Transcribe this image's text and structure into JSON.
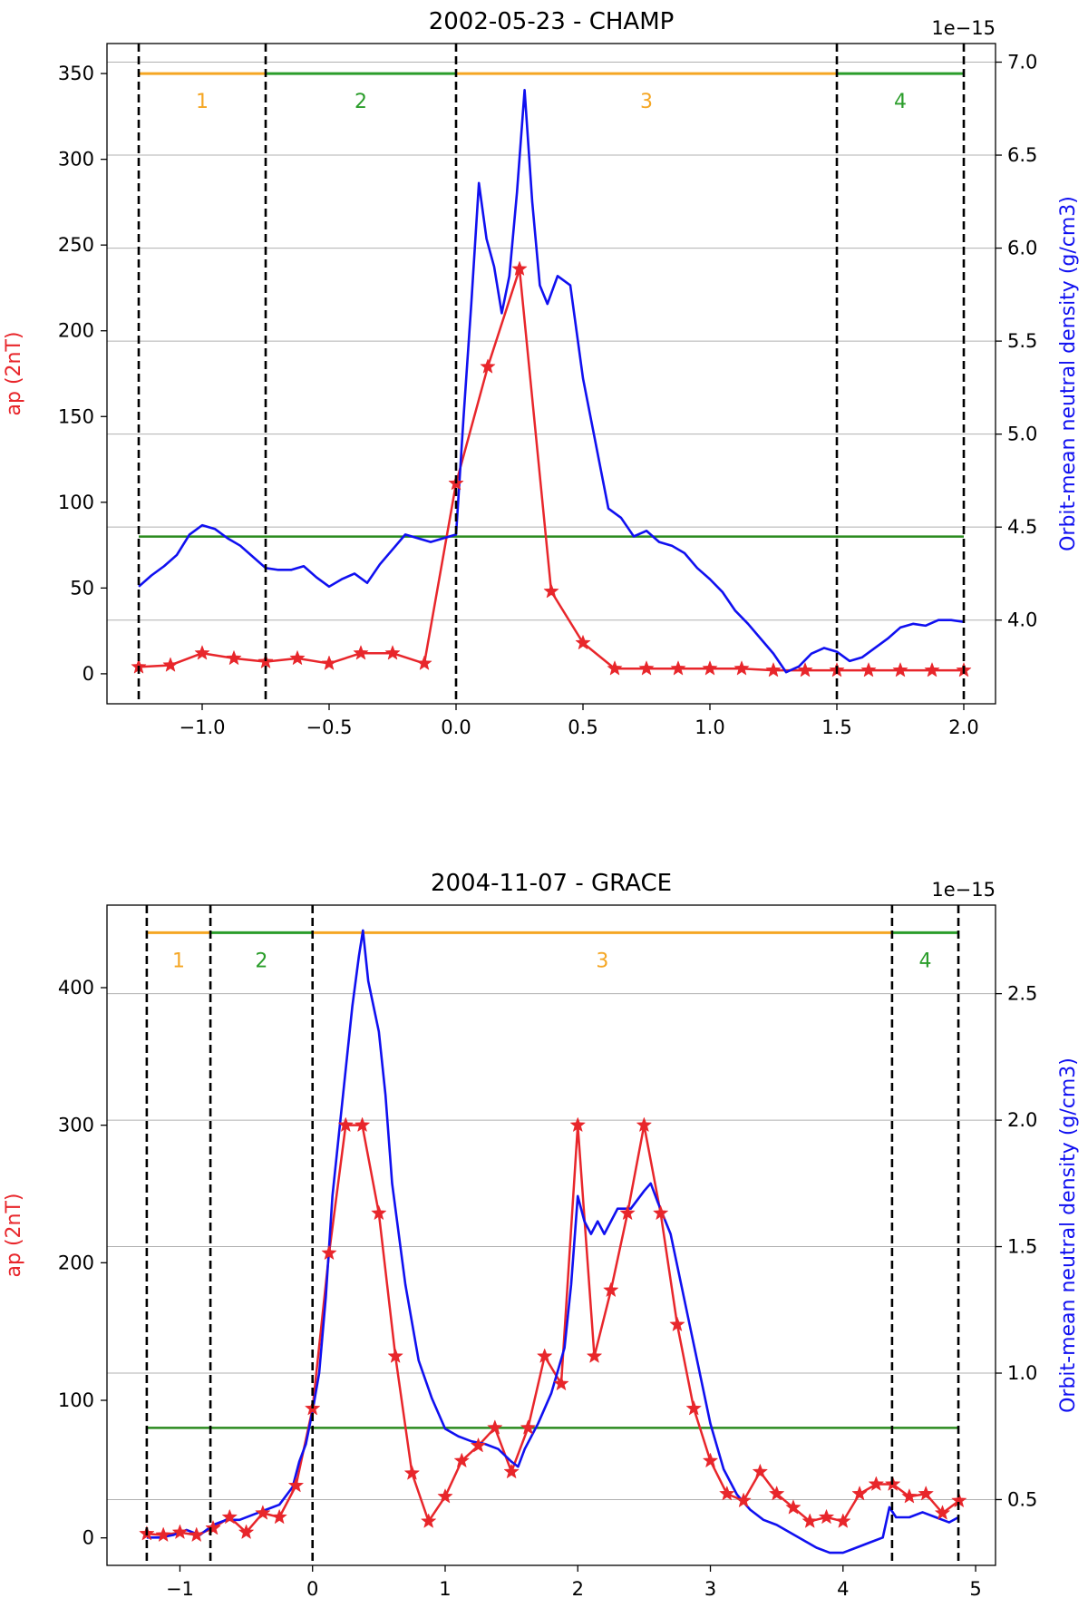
{
  "chart_data": [
    {
      "type": "line",
      "title": "2002-05-23 - CHAMP",
      "ylabel_left": "ap (2nT)",
      "ylabel_right": "Orbit-mean neutral density (g/cm3)",
      "right_offset_text": "1e−15",
      "xlim": [
        -1.375,
        2.125
      ],
      "ylim_left": [
        -17.5,
        367.5
      ],
      "ylim_right": [
        3.55,
        7.1
      ],
      "x_ticks": [
        -1.0,
        -0.5,
        0.0,
        0.5,
        1.0,
        1.5,
        2.0
      ],
      "x_tick_labels": [
        "−1.0",
        "−0.5",
        "0.0",
        "0.5",
        "1.0",
        "1.5",
        "2.0"
      ],
      "y_left_ticks": [
        0,
        50,
        100,
        150,
        200,
        250,
        300,
        350
      ],
      "y_left_tick_labels": [
        "0",
        "50",
        "100",
        "150",
        "200",
        "250",
        "300",
        "350"
      ],
      "y_right_ticks": [
        4.0,
        4.5,
        5.0,
        5.5,
        6.0,
        6.5,
        7.0
      ],
      "y_right_tick_labels": [
        "4.0",
        "4.5",
        "5.0",
        "5.5",
        "6.0",
        "6.5",
        "7.0"
      ],
      "grid": "horizontal, right axis",
      "threshold_ap": 80,
      "phase_bar_ap": 350,
      "phase_boundaries": [
        -1.25,
        -0.75,
        0.0,
        1.5,
        2.0
      ],
      "phases": [
        {
          "label": "1",
          "start": -1.25,
          "end": -0.75,
          "color": "#f5a623"
        },
        {
          "label": "2",
          "start": -0.75,
          "end": 0.0,
          "color": "#2a9d2a"
        },
        {
          "label": "3",
          "start": 0.0,
          "end": 1.5,
          "color": "#f5a623"
        },
        {
          "label": "4",
          "start": 1.5,
          "end": 2.0,
          "color": "#2a9d2a"
        }
      ],
      "series": [
        {
          "axis": "left",
          "color": "#e8262b",
          "marker": "star",
          "x": [
            -1.25,
            -1.125,
            -1.0,
            -0.875,
            -0.75,
            -0.625,
            -0.5,
            -0.375,
            -0.25,
            -0.125,
            0.0,
            0.125,
            0.25,
            0.375,
            0.5,
            0.625,
            0.75,
            0.875,
            1.0,
            1.125,
            1.25,
            1.375,
            1.5,
            1.625,
            1.75,
            1.875,
            2.0
          ],
          "y": [
            4,
            5,
            12,
            9,
            7,
            9,
            6,
            12,
            12,
            6,
            111,
            179,
            236,
            48,
            18,
            3,
            3,
            3,
            3,
            3,
            2,
            2,
            2,
            2,
            2,
            2,
            2
          ]
        },
        {
          "axis": "right",
          "color": "#1010f0",
          "x": [
            -1.25,
            -1.2,
            -1.15,
            -1.1,
            -1.05,
            -1.0,
            -0.95,
            -0.9,
            -0.85,
            -0.8,
            -0.75,
            -0.7,
            -0.65,
            -0.6,
            -0.55,
            -0.5,
            -0.45,
            -0.4,
            -0.35,
            -0.3,
            -0.25,
            -0.2,
            -0.15,
            -0.1,
            -0.05,
            0.0,
            0.03,
            0.06,
            0.09,
            0.12,
            0.15,
            0.18,
            0.21,
            0.24,
            0.27,
            0.3,
            0.33,
            0.36,
            0.4,
            0.45,
            0.5,
            0.55,
            0.6,
            0.65,
            0.7,
            0.75,
            0.8,
            0.85,
            0.9,
            0.95,
            1.0,
            1.05,
            1.1,
            1.15,
            1.2,
            1.25,
            1.3,
            1.35,
            1.4,
            1.45,
            1.5,
            1.55,
            1.6,
            1.65,
            1.7,
            1.75,
            1.8,
            1.85,
            1.9,
            1.95,
            2.0
          ],
          "y": [
            4.18,
            4.24,
            4.29,
            4.35,
            4.46,
            4.51,
            4.49,
            4.44,
            4.4,
            4.34,
            4.28,
            4.27,
            4.27,
            4.29,
            4.23,
            4.18,
            4.22,
            4.25,
            4.2,
            4.3,
            4.38,
            4.46,
            4.44,
            4.42,
            4.44,
            4.46,
            5.1,
            5.7,
            6.35,
            6.05,
            5.9,
            5.65,
            5.85,
            6.3,
            6.85,
            6.25,
            5.8,
            5.7,
            5.85,
            5.8,
            5.3,
            4.95,
            4.6,
            4.55,
            4.45,
            4.48,
            4.42,
            4.4,
            4.36,
            4.28,
            4.22,
            4.15,
            4.05,
            3.98,
            3.9,
            3.82,
            3.72,
            3.75,
            3.82,
            3.85,
            3.83,
            3.78,
            3.8,
            3.85,
            3.9,
            3.96,
            3.98,
            3.97,
            4.0,
            4.0,
            3.99
          ]
        }
      ]
    },
    {
      "type": "line",
      "title": "2004-11-07 - GRACE",
      "ylabel_left": "ap (2nT)",
      "ylabel_right": "Orbit-mean neutral density (g/cm3)",
      "right_offset_text": "1e−15",
      "xlim": [
        -1.55,
        5.15
      ],
      "ylim_left": [
        -20,
        460
      ],
      "ylim_right": [
        0.24,
        2.85
      ],
      "x_ticks": [
        -1,
        0,
        1,
        2,
        3,
        4,
        5
      ],
      "x_tick_labels": [
        "−1",
        "0",
        "1",
        "2",
        "3",
        "4",
        "5"
      ],
      "y_left_ticks": [
        0,
        100,
        200,
        300,
        400
      ],
      "y_left_tick_labels": [
        "0",
        "100",
        "200",
        "300",
        "400"
      ],
      "y_right_ticks": [
        0.5,
        1.0,
        1.5,
        2.0,
        2.5
      ],
      "y_right_tick_labels": [
        "0.5",
        "1.0",
        "1.5",
        "2.0",
        "2.5"
      ],
      "grid": "horizontal, right axis",
      "threshold_ap": 80,
      "phase_bar_ap": 440,
      "phase_boundaries": [
        -1.25,
        -0.77,
        0.0,
        4.37,
        4.87
      ],
      "phases": [
        {
          "label": "1",
          "start": -1.25,
          "end": -0.77,
          "color": "#f5a623"
        },
        {
          "label": "2",
          "start": -0.77,
          "end": 0.0,
          "color": "#2a9d2a"
        },
        {
          "label": "3",
          "start": 0.0,
          "end": 4.37,
          "color": "#f5a623"
        },
        {
          "label": "4",
          "start": 4.37,
          "end": 4.87,
          "color": "#2a9d2a"
        }
      ],
      "series": [
        {
          "axis": "left",
          "color": "#e8262b",
          "marker": "star",
          "x": [
            -1.25,
            -1.125,
            -1.0,
            -0.875,
            -0.75,
            -0.625,
            -0.5,
            -0.375,
            -0.25,
            -0.125,
            0.0,
            0.125,
            0.25,
            0.375,
            0.5,
            0.625,
            0.75,
            0.875,
            1.0,
            1.125,
            1.25,
            1.375,
            1.5,
            1.625,
            1.75,
            1.875,
            2.0,
            2.125,
            2.25,
            2.375,
            2.5,
            2.625,
            2.75,
            2.875,
            3.0,
            3.125,
            3.25,
            3.375,
            3.5,
            3.625,
            3.75,
            3.875,
            4.0,
            4.125,
            4.25,
            4.375,
            4.5,
            4.625,
            4.75,
            4.875
          ],
          "y": [
            3,
            2,
            4,
            2,
            7,
            15,
            4,
            18,
            15,
            38,
            94,
            207,
            300,
            300,
            236,
            132,
            47,
            12,
            30,
            56,
            67,
            80,
            48,
            80,
            132,
            112,
            300,
            132,
            180,
            236,
            300,
            236,
            155,
            94,
            56,
            32,
            27,
            48,
            32,
            22,
            12,
            15,
            12,
            32,
            39,
            39,
            30,
            32,
            18,
            27
          ]
        },
        {
          "axis": "right",
          "color": "#1010f0",
          "x": [
            -1.25,
            -1.15,
            -1.05,
            -0.95,
            -0.85,
            -0.75,
            -0.65,
            -0.55,
            -0.45,
            -0.35,
            -0.25,
            -0.15,
            -0.1,
            -0.05,
            0.0,
            0.05,
            0.1,
            0.15,
            0.2,
            0.25,
            0.3,
            0.35,
            0.38,
            0.42,
            0.46,
            0.5,
            0.55,
            0.6,
            0.7,
            0.8,
            0.9,
            1.0,
            1.1,
            1.2,
            1.3,
            1.4,
            1.5,
            1.55,
            1.6,
            1.7,
            1.8,
            1.9,
            1.95,
            2.0,
            2.05,
            2.1,
            2.15,
            2.2,
            2.3,
            2.4,
            2.5,
            2.55,
            2.6,
            2.7,
            2.8,
            2.9,
            3.0,
            3.1,
            3.2,
            3.3,
            3.4,
            3.5,
            3.6,
            3.7,
            3.8,
            3.9,
            4.0,
            4.1,
            4.2,
            4.3,
            4.35,
            4.4,
            4.5,
            4.6,
            4.7,
            4.8,
            4.87
          ],
          "y": [
            0.35,
            0.35,
            0.36,
            0.38,
            0.36,
            0.4,
            0.42,
            0.42,
            0.44,
            0.46,
            0.48,
            0.55,
            0.65,
            0.72,
            0.85,
            1.0,
            1.3,
            1.7,
            1.95,
            2.2,
            2.45,
            2.65,
            2.75,
            2.55,
            2.45,
            2.35,
            2.1,
            1.75,
            1.35,
            1.05,
            0.9,
            0.78,
            0.75,
            0.73,
            0.72,
            0.7,
            0.65,
            0.63,
            0.7,
            0.8,
            0.92,
            1.1,
            1.35,
            1.7,
            1.6,
            1.55,
            1.6,
            1.55,
            1.65,
            1.65,
            1.72,
            1.75,
            1.68,
            1.55,
            1.3,
            1.05,
            0.8,
            0.62,
            0.52,
            0.46,
            0.42,
            0.4,
            0.37,
            0.34,
            0.31,
            0.29,
            0.29,
            0.31,
            0.33,
            0.35,
            0.47,
            0.43,
            0.43,
            0.45,
            0.43,
            0.41,
            0.43
          ]
        }
      ]
    }
  ]
}
